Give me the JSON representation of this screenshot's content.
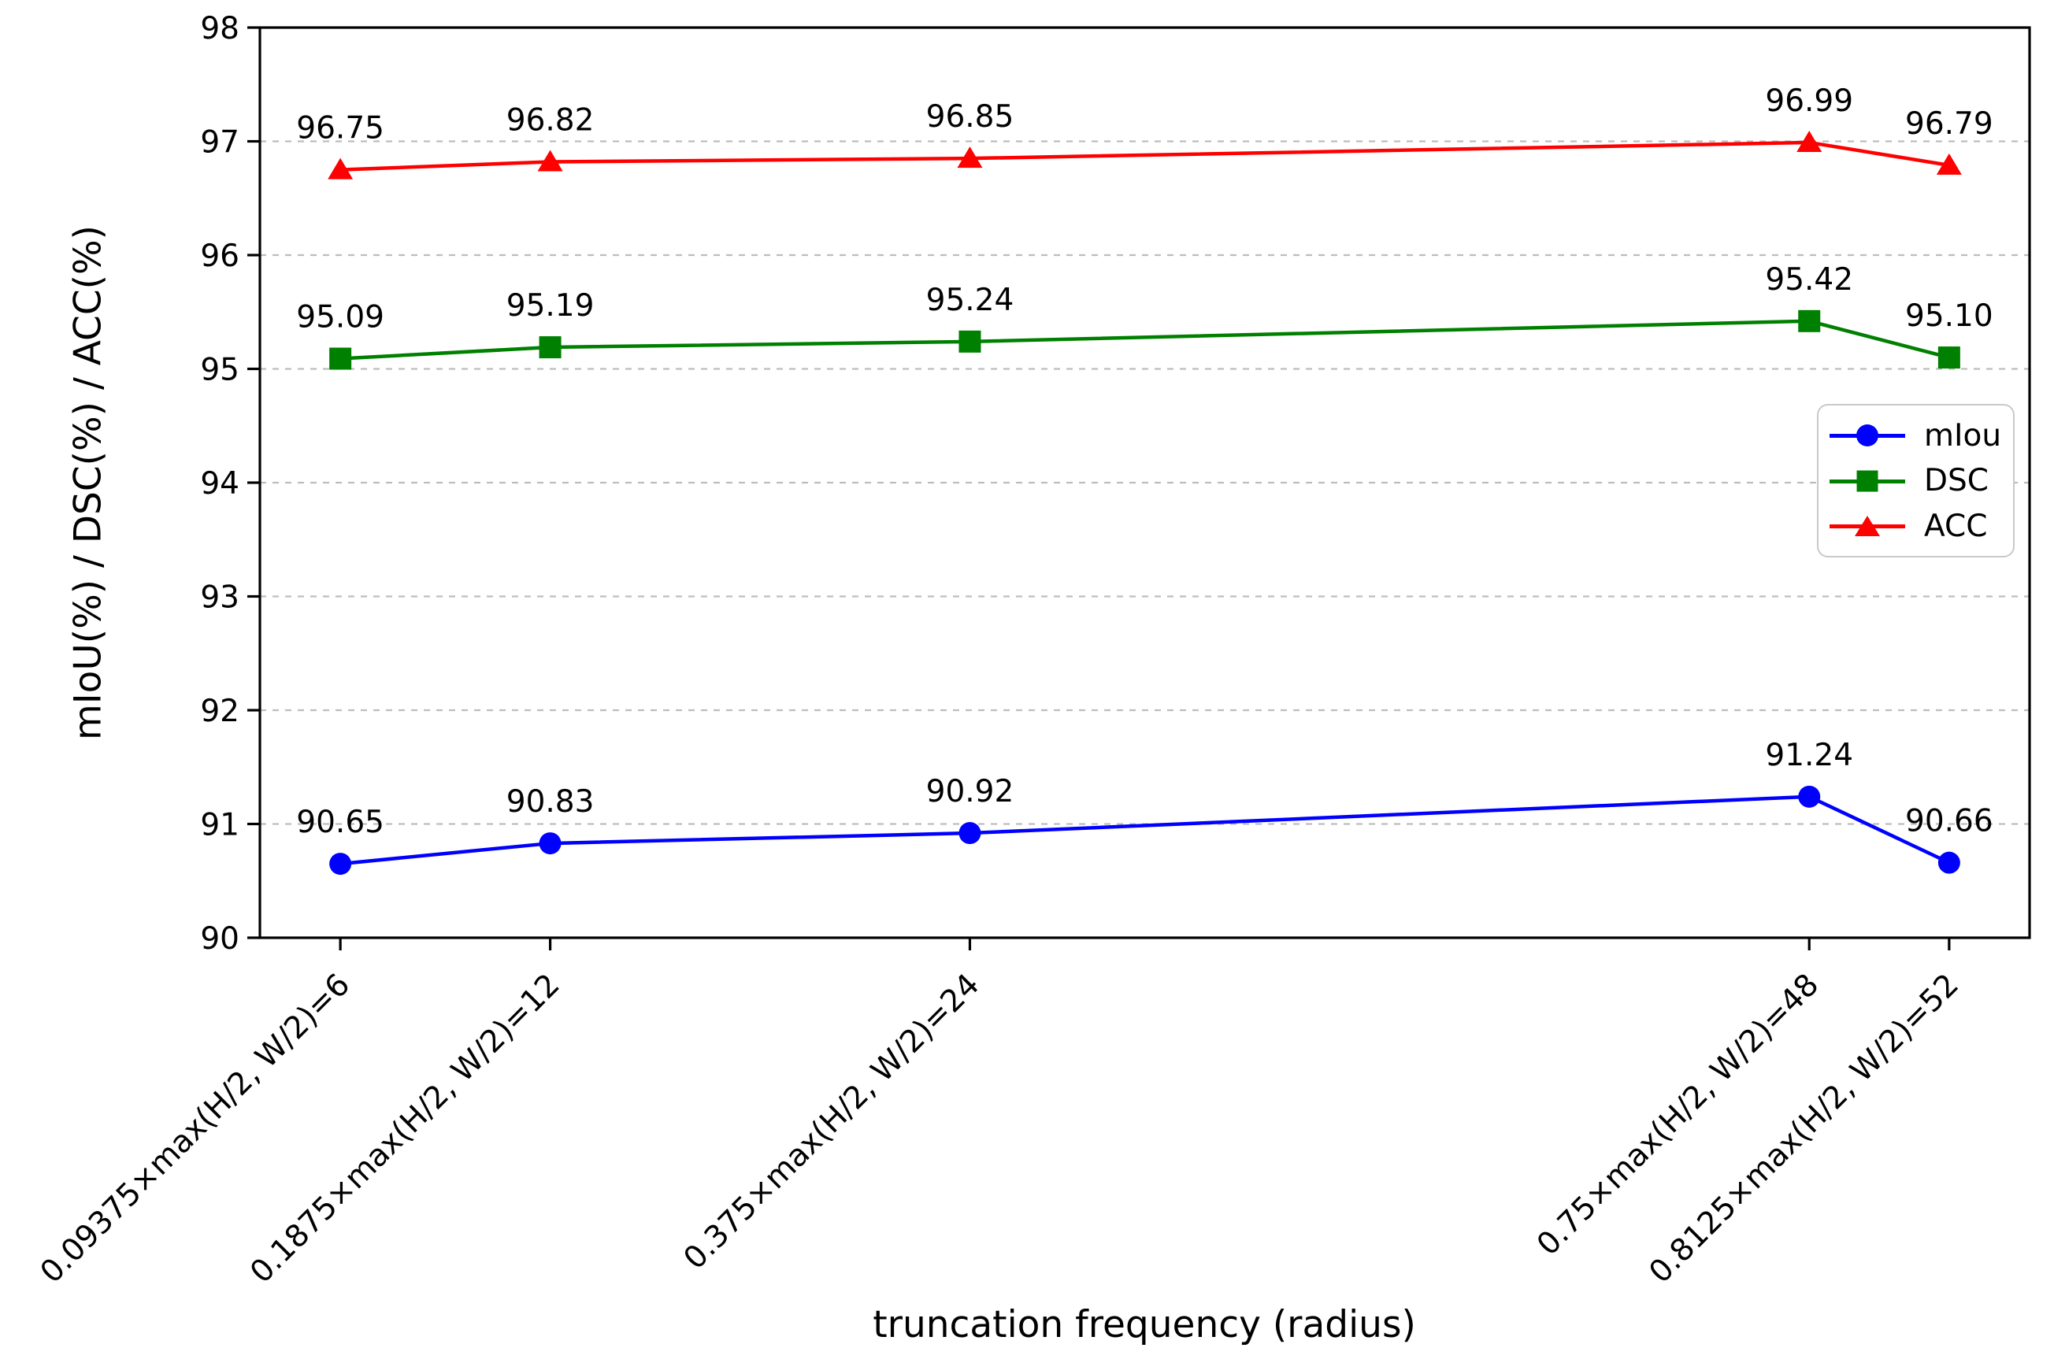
{
  "figure": {
    "background": "#ffffff"
  },
  "chart_data": {
    "type": "line",
    "title": "",
    "xlabel": "truncation frequency (radius)",
    "ylabel": "mIoU(%) / DSC(%) / ACC(%)",
    "x_values": [
      6,
      12,
      24,
      48,
      52
    ],
    "x_tick_labels": [
      "0.09375×max(H/2, W/2)=6",
      "0.1875×max(H/2, W/2)=12",
      "0.375×max(H/2, W/2)=24",
      "0.75×max(H/2, W/2)=48",
      "0.8125×max(H/2, W/2)=52"
    ],
    "x_tick_rotation": 45,
    "xlim": [
      3.7,
      54.3
    ],
    "ylim": [
      90,
      98
    ],
    "y_ticks": [
      90,
      91,
      92,
      93,
      94,
      95,
      96,
      97,
      98
    ],
    "grid": {
      "horizontal": true,
      "style": "dashed",
      "color": "#bdbdbd",
      "at": [
        91,
        92,
        93,
        94,
        95,
        96,
        97
      ]
    },
    "legend": {
      "position": "center-right",
      "items": [
        "mIou",
        "DSC",
        "ACC"
      ]
    },
    "series": [
      {
        "name": "mIou",
        "color": "#0000ff",
        "marker": "circle",
        "values": [
          90.65,
          90.83,
          90.92,
          91.24,
          90.66
        ],
        "labels": [
          "90.65",
          "90.83",
          "90.92",
          "91.24",
          "90.66"
        ]
      },
      {
        "name": "DSC",
        "color": "#008000",
        "marker": "square",
        "values": [
          95.09,
          95.19,
          95.24,
          95.42,
          95.1
        ],
        "labels": [
          "95.09",
          "95.19",
          "95.24",
          "95.42",
          "95.10"
        ]
      },
      {
        "name": "ACC",
        "color": "#ff0000",
        "marker": "triangle",
        "values": [
          96.75,
          96.82,
          96.85,
          96.99,
          96.79
        ],
        "labels": [
          "96.75",
          "96.82",
          "96.85",
          "96.99",
          "96.79"
        ]
      }
    ]
  }
}
